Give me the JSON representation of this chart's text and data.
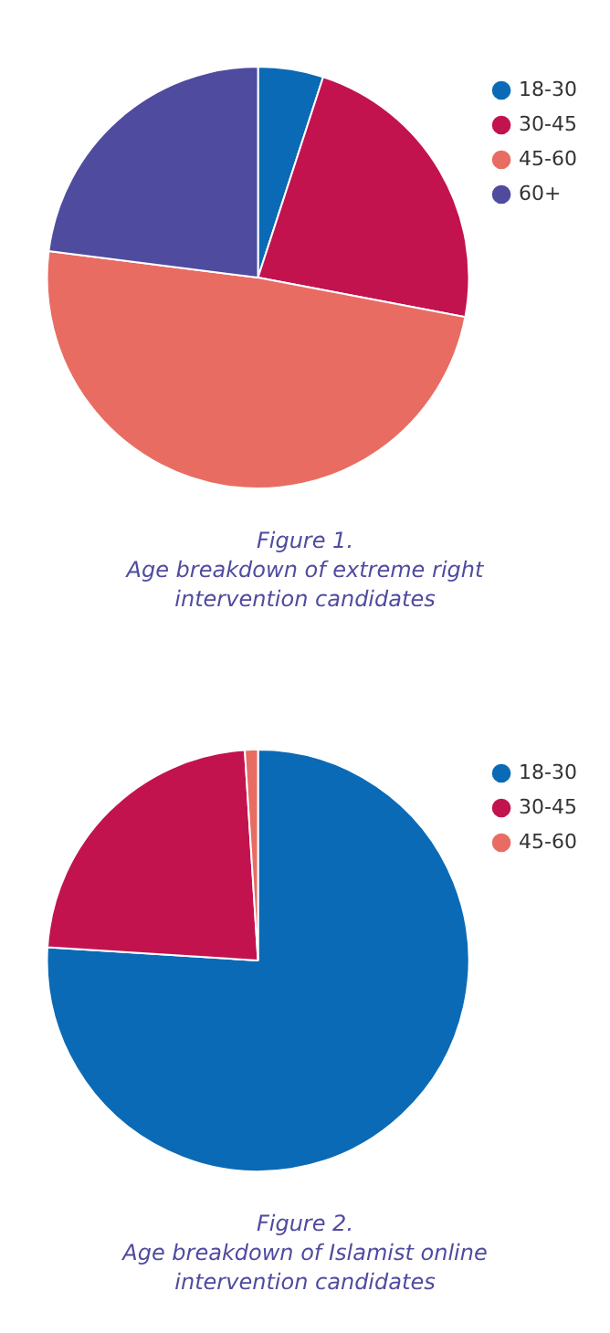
{
  "chart_data": [
    {
      "type": "pie",
      "title": "Figure 1.",
      "subtitle": "Age breakdown of extreme right intervention candidates",
      "categories": [
        "18-30",
        "30-45",
        "45-60",
        "60+"
      ],
      "values": [
        5,
        23,
        49,
        23
      ],
      "colors": [
        "#0a6ab6",
        "#c2134f",
        "#e86c62",
        "#4f4b9f"
      ],
      "legend": "top right"
    },
    {
      "type": "pie",
      "title": "Figure 2.",
      "subtitle": "Age breakdown of Islamist online intervention candidates",
      "categories": [
        "18-30",
        "30-45",
        "45-60"
      ],
      "values": [
        76,
        23,
        1
      ],
      "colors": [
        "#0a6ab6",
        "#c2134f",
        "#e86c62"
      ],
      "legend": "top right"
    }
  ]
}
